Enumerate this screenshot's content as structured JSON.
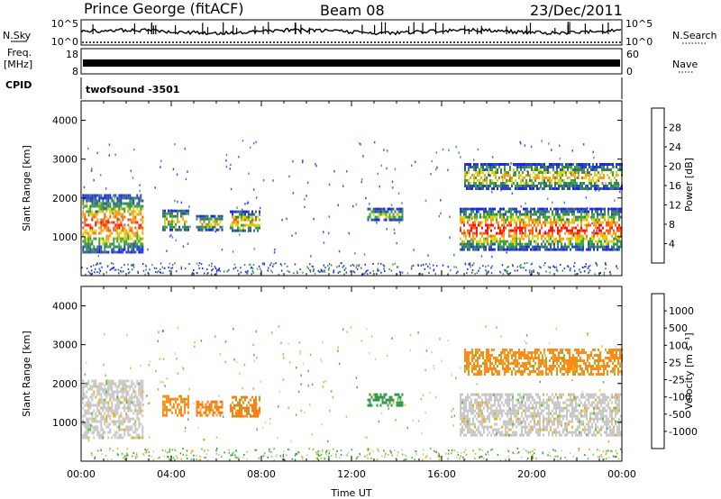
{
  "header": {
    "station": "Prince George (fitACF)",
    "beam": "Beam 08",
    "date": "23/Dec/2011"
  },
  "side_labels": {
    "nsky": "N.Sky",
    "freq_top": "Freq.",
    "freq_unit": "[MHz]",
    "cpid": "CPID",
    "nsearch": "N.Search",
    "nave": "Nave"
  },
  "strips": {
    "noise": {
      "left_ticks": [
        "10^5",
        "10^0"
      ],
      "right_ticks": [
        "10^5",
        "10^0"
      ]
    },
    "freq": {
      "left_ticks": [
        "18",
        "8"
      ],
      "right_ticks": [
        "60",
        "0"
      ]
    },
    "cpid_text": "twofsound -3501"
  },
  "chart_data": [
    {
      "type": "heatmap",
      "name": "power",
      "ylabel": "Slant Range [km]",
      "xlabel": "",
      "ylim": [
        0,
        4500
      ],
      "yticks": [
        "1000",
        "2000",
        "3000",
        "4000"
      ],
      "xlim_hours": [
        0,
        24
      ],
      "colorbar": {
        "label": "Power [dB]",
        "ticks": [
          "4",
          "8",
          "12",
          "16",
          "20",
          "24",
          "28"
        ],
        "colors": [
          "#1f1fff",
          "#2a48c0",
          "#3a7c6a",
          "#3aa83a",
          "#d8d814",
          "#ff9a14",
          "#ff5a10",
          "#ff1010"
        ]
      },
      "echo_regions": [
        {
          "t0": 0.05,
          "t1": 2.7,
          "r0": 620,
          "r1": 2100,
          "core": 0.72
        },
        {
          "t0": 3.6,
          "t1": 4.8,
          "r0": 1180,
          "r1": 1700,
          "core": 0.5
        },
        {
          "t0": 5.1,
          "t1": 6.3,
          "r0": 1200,
          "r1": 1560,
          "core": 0.55
        },
        {
          "t0": 6.6,
          "t1": 7.9,
          "r0": 1150,
          "r1": 1680,
          "core": 0.62
        },
        {
          "t0": 12.7,
          "t1": 14.3,
          "r0": 1450,
          "r1": 1750,
          "core": 0.45
        },
        {
          "t0": 16.8,
          "t1": 24.0,
          "r0": 700,
          "r1": 1750,
          "core": 0.78
        },
        {
          "t0": 17.0,
          "t1": 24.0,
          "r0": 2250,
          "r1": 2900,
          "core": 0.5
        }
      ]
    },
    {
      "type": "heatmap",
      "name": "velocity",
      "ylabel": "Slant Range [km]",
      "xlabel": "Time UT",
      "ylim": [
        0,
        4500
      ],
      "yticks": [
        "1000",
        "2000",
        "3000",
        "4000"
      ],
      "xticks": [
        "00:00",
        "04:00",
        "08:00",
        "12:00",
        "16:00",
        "20:00",
        "00:00"
      ],
      "colorbar": {
        "label": "Velocity [m s⁻¹]",
        "ticks": [
          "1000",
          "500",
          "100",
          "25",
          "-25",
          "-100",
          "-500",
          "-1000"
        ],
        "colors": [
          "#1f3fd0",
          "#2f7a9a",
          "#2f9a4a",
          "#5ac83a",
          "#c8c8c8",
          "#e8b020",
          "#ff7a10",
          "#ff4a10",
          "#ff1010"
        ]
      },
      "echo_regions": [
        {
          "t0": 0.05,
          "t1": 2.7,
          "r0": 620,
          "r1": 2100,
          "color": "#c8c8c8"
        },
        {
          "t0": 3.6,
          "t1": 4.8,
          "r0": 1180,
          "r1": 1700,
          "color": "#ff8a14"
        },
        {
          "t0": 5.1,
          "t1": 6.3,
          "r0": 1200,
          "r1": 1560,
          "color": "#ff7a10"
        },
        {
          "t0": 6.6,
          "t1": 7.9,
          "r0": 1150,
          "r1": 1680,
          "color": "#ff7a10"
        },
        {
          "t0": 12.7,
          "t1": 14.3,
          "r0": 1450,
          "r1": 1750,
          "color": "#2f9a4a"
        },
        {
          "t0": 16.8,
          "t1": 24.0,
          "r0": 700,
          "r1": 1750,
          "color": "#c8c8c8"
        },
        {
          "t0": 17.0,
          "t1": 24.0,
          "r0": 2250,
          "r1": 2900,
          "color": "#ff8a14"
        }
      ]
    }
  ]
}
